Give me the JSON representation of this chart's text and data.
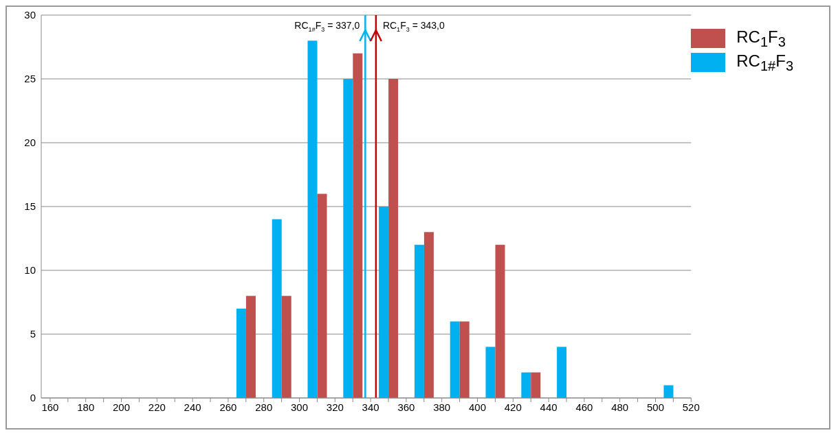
{
  "chart_data": {
    "type": "bar",
    "x": [
      270,
      290,
      310,
      330,
      350,
      370,
      390,
      410,
      430,
      450,
      470,
      490,
      510
    ],
    "series": [
      {
        "name": "RC$_{1#}$F$_{3}$",
        "color": "#00b0f0",
        "values": [
          7,
          14,
          28,
          25,
          15,
          12,
          6,
          4,
          2,
          4,
          0,
          0,
          1
        ]
      },
      {
        "name": "RC$_{1}$F$_{3}$",
        "color": "#c0504d",
        "values": [
          8,
          8,
          16,
          27,
          25,
          13,
          6,
          12,
          2,
          0,
          0,
          0,
          0
        ]
      }
    ],
    "xlim": [
      155,
      520
    ],
    "xticks": [
      160,
      {
        "value": 170,
        "label": null
      },
      180,
      {
        "value": 190,
        "label": null
      },
      200,
      {
        "value": 210,
        "label": null
      },
      220,
      {
        "value": 230,
        "label": null
      },
      240,
      {
        "value": 250,
        "label": null
      },
      260,
      {
        "value": 270,
        "label": null
      },
      280,
      {
        "value": 290,
        "label": null
      },
      300,
      {
        "value": 310,
        "label": null
      },
      320,
      {
        "value": 330,
        "label": null
      },
      340,
      {
        "value": 350,
        "label": null
      },
      360,
      {
        "value": 370,
        "label": null
      },
      380,
      {
        "value": 390,
        "label": null
      },
      400,
      {
        "value": 410,
        "label": null
      },
      420,
      {
        "value": 430,
        "label": null
      },
      440,
      {
        "value": 450,
        "label": null
      },
      460,
      {
        "value": 470,
        "label": null
      },
      480,
      {
        "value": 490,
        "label": null
      },
      500,
      {
        "value": 510,
        "label": null
      },
      520
    ],
    "ylim": [
      0,
      30
    ],
    "yticks": [
      0,
      5,
      10,
      15,
      20,
      25,
      30
    ],
    "ref_lines": [
      {
        "axis": "x",
        "value": 337,
        "label": "RC$_{1#}$F$_{3}$ = 337,0",
        "color": "#00b0f0"
      },
      {
        "axis": "x",
        "value": 343,
        "label": "RC$_{1}$F$_{3}$ = 343,0",
        "color": "#c00000"
      }
    ],
    "grid": "y",
    "legend": "top right"
  }
}
